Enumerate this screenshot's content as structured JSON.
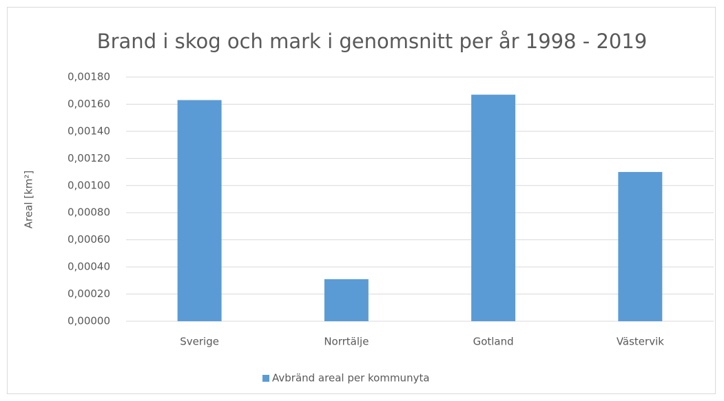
{
  "chart_data": {
    "type": "bar",
    "title": "Brand i skog och mark i genomsnitt per år 1998 - 2019",
    "ylabel": "Areal [km²]",
    "categories": [
      "Sverige",
      "Norrtälje",
      "Gotland",
      "Västervik"
    ],
    "series": [
      {
        "name": "Avbränd areal per kommunyta",
        "color": "#5b9bd5",
        "values": [
          0.00163,
          0.00031,
          0.00167,
          0.0011
        ]
      }
    ],
    "ylim": [
      0,
      0.0018
    ],
    "yticks": [
      {
        "value": 0,
        "label": "0,00000"
      },
      {
        "value": 0.0002,
        "label": "0,00020"
      },
      {
        "value": 0.0004,
        "label": "0,00040"
      },
      {
        "value": 0.0006,
        "label": "0,00060"
      },
      {
        "value": 0.0008,
        "label": "0,00080"
      },
      {
        "value": 0.001,
        "label": "0,00100"
      },
      {
        "value": 0.0012,
        "label": "0,00120"
      },
      {
        "value": 0.0014,
        "label": "0,00140"
      },
      {
        "value": 0.0016,
        "label": "0,00160"
      },
      {
        "value": 0.0018,
        "label": "0,00180"
      }
    ],
    "grid": true,
    "legend": "bottom"
  }
}
